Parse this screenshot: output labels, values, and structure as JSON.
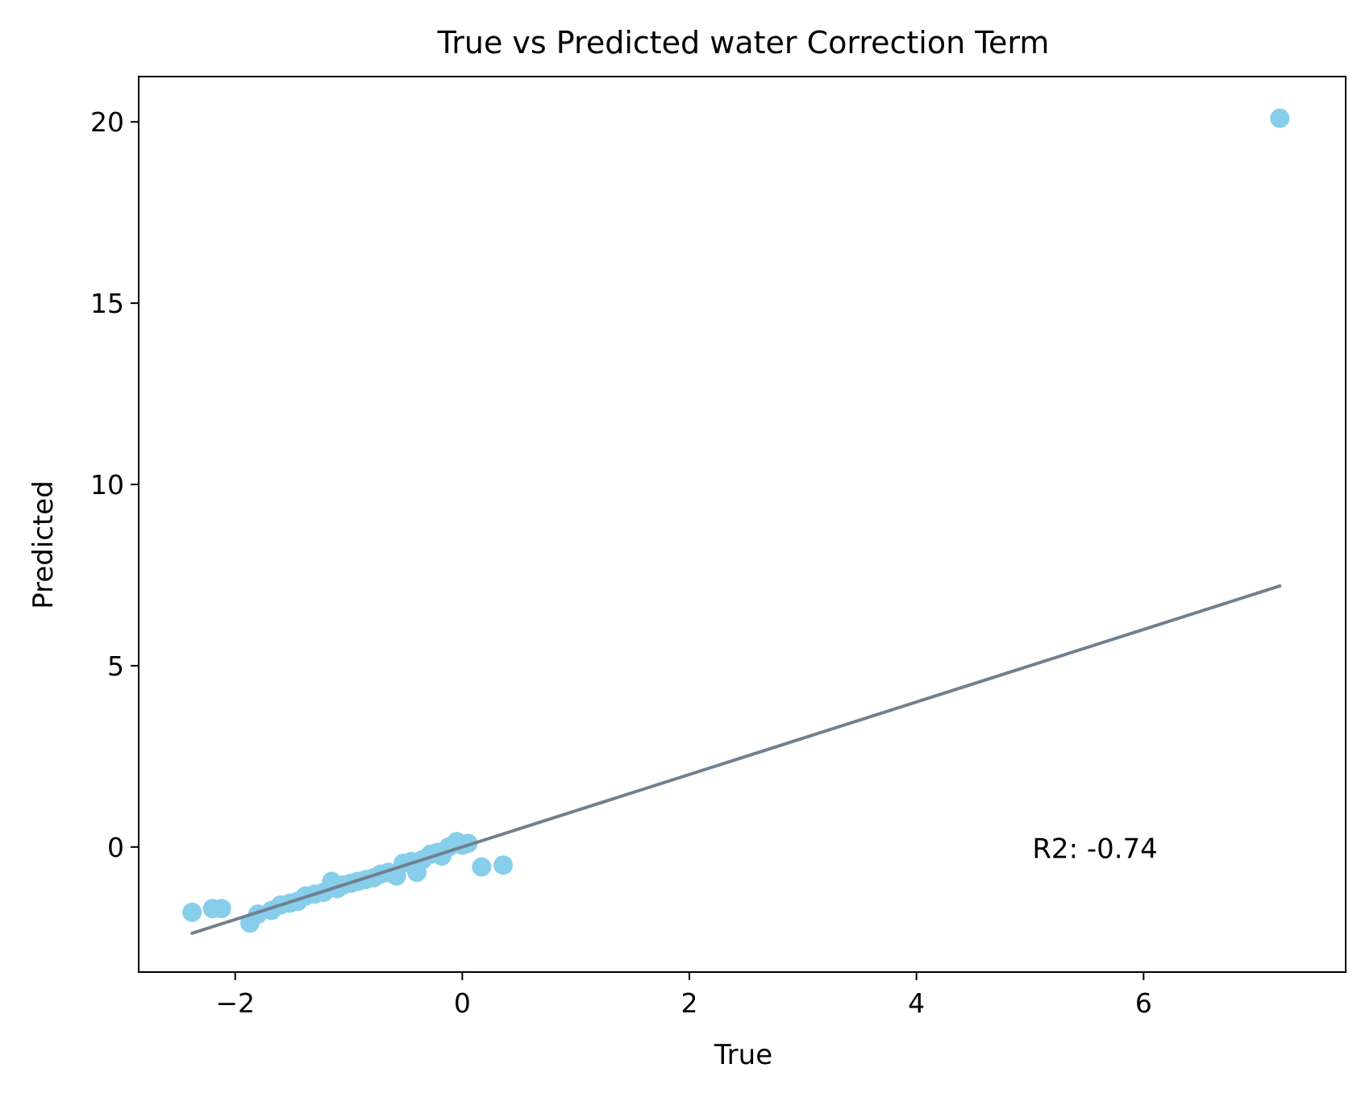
{
  "chart_data": {
    "type": "scatter",
    "title": "True vs Predicted water Correction Term",
    "xlabel": "True",
    "ylabel": "Predicted",
    "xlim": [
      -2.85,
      7.78
    ],
    "ylim": [
      -3.45,
      21.25
    ],
    "xticks": [
      -2,
      0,
      2,
      4,
      6
    ],
    "xtick_labels": [
      "−2",
      "0",
      "2",
      "4",
      "6"
    ],
    "yticks": [
      0,
      5,
      10,
      15,
      20
    ],
    "ytick_labels": [
      "0",
      "5",
      "10",
      "15",
      "20"
    ],
    "grid": false,
    "annotation": "R2: -0.74",
    "annotation_position": [
      5.02,
      -0.3
    ],
    "point_color": "#87ceeb",
    "line_color": "#708090",
    "series": [
      {
        "kind": "scatter",
        "x": [
          -2.38,
          -2.2,
          -2.12,
          -1.87,
          -1.8,
          -1.68,
          -1.6,
          -1.52,
          -1.45,
          -1.38,
          -1.3,
          -1.22,
          -1.15,
          -1.1,
          -1.05,
          -0.98,
          -0.92,
          -0.85,
          -0.78,
          -0.72,
          -0.65,
          -0.58,
          -0.52,
          -0.45,
          -0.4,
          -0.35,
          -0.28,
          -0.22,
          -0.18,
          -0.12,
          -0.05,
          0.0,
          0.05,
          0.17,
          0.36,
          7.2
        ],
        "y": [
          -1.8,
          -1.7,
          -1.7,
          -2.1,
          -1.85,
          -1.75,
          -1.6,
          -1.55,
          -1.5,
          -1.35,
          -1.3,
          -1.25,
          -0.95,
          -1.15,
          -1.05,
          -1.0,
          -0.95,
          -0.9,
          -0.85,
          -0.75,
          -0.7,
          -0.8,
          -0.45,
          -0.4,
          -0.7,
          -0.35,
          -0.2,
          -0.15,
          -0.25,
          0.0,
          0.15,
          0.05,
          0.1,
          -0.55,
          -0.5,
          20.1
        ]
      },
      {
        "kind": "line",
        "x": [
          -2.38,
          7.2
        ],
        "y": [
          -2.38,
          7.2
        ]
      }
    ]
  }
}
